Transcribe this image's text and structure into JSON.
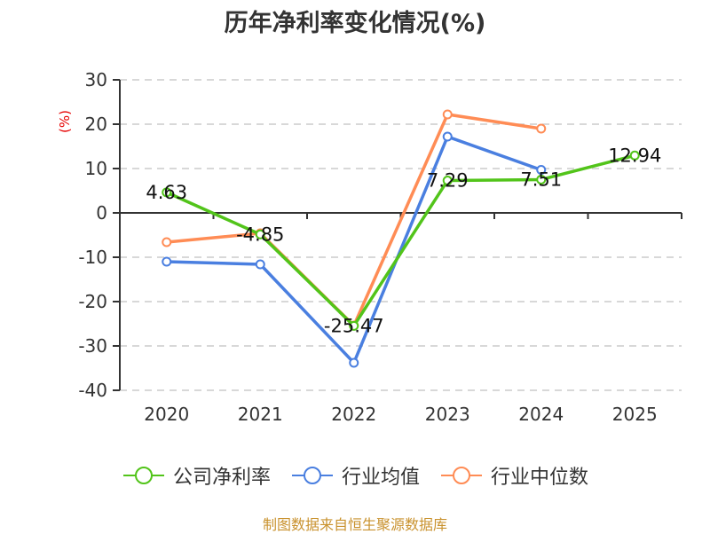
{
  "title": "历年净利率变化情况(%)",
  "ylabel": "(%)",
  "footer": "制图数据来自恒生聚源数据库",
  "legend": [
    {
      "label": "公司净利率",
      "color": "#52c41a"
    },
    {
      "label": "行业均值",
      "color": "#4a7fe0"
    },
    {
      "label": "行业中位数",
      "color": "#ff8c55"
    }
  ],
  "chart_data": {
    "type": "line",
    "title": "历年净利率变化情况(%)",
    "xlabel": "",
    "ylabel": "(%)",
    "categories": [
      "2020",
      "2021",
      "2022",
      "2023",
      "2024",
      "2025"
    ],
    "ylim": [
      -40,
      30
    ],
    "yticks": [
      30,
      20,
      10,
      0,
      -10,
      -20,
      -30,
      -40
    ],
    "grid": true,
    "legend_position": "bottom",
    "series": [
      {
        "name": "公司净利率",
        "color": "#52c41a",
        "values": [
          4.63,
          -4.85,
          -25.47,
          7.29,
          7.51,
          12.94
        ],
        "labels": [
          "4.63",
          "-4.85",
          "-25.47",
          "7.29",
          "7.51",
          "12.94"
        ]
      },
      {
        "name": "行业均值",
        "color": "#4a7fe0",
        "values": [
          -11.0,
          -11.6,
          -33.8,
          17.2,
          9.7,
          null
        ]
      },
      {
        "name": "行业中位数",
        "color": "#ff8c55",
        "values": [
          -6.6,
          -4.6,
          -25.4,
          22.2,
          19.0,
          null
        ]
      }
    ]
  }
}
